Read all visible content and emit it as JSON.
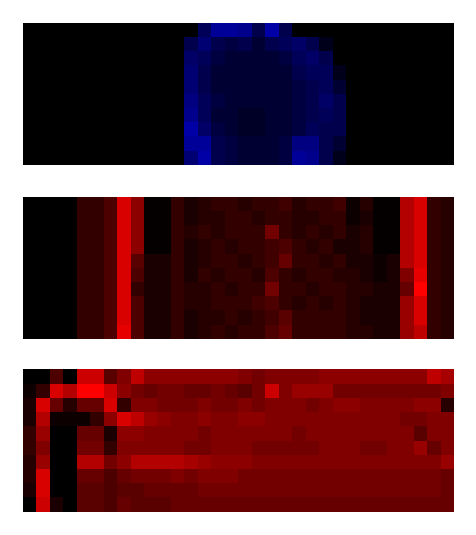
{
  "chart_data": [
    {
      "type": "heatmap",
      "color": "#0000ff",
      "zlim": [
        0,
        1
      ],
      "tick_labels": false,
      "cells": [
        [
          0,
          0,
          0,
          0,
          0,
          0,
          0,
          0,
          0,
          0,
          0,
          0,
          0,
          0.35,
          0.6,
          0.6,
          0.55,
          0.3,
          0.65,
          0.3,
          0,
          0,
          0,
          0,
          0,
          0,
          0,
          0,
          0,
          0,
          0,
          0
        ],
        [
          0,
          0,
          0,
          0,
          0,
          0,
          0,
          0,
          0,
          0,
          0,
          0,
          0.3,
          0.45,
          0.3,
          0.25,
          0.3,
          0.2,
          0.3,
          0.35,
          0.4,
          0.3,
          0.1,
          0,
          0,
          0,
          0,
          0,
          0,
          0,
          0,
          0
        ],
        [
          0,
          0,
          0,
          0,
          0,
          0,
          0,
          0,
          0,
          0,
          0,
          0,
          0.4,
          0.35,
          0.25,
          0.2,
          0.2,
          0.2,
          0.2,
          0.25,
          0.35,
          0.4,
          0.3,
          0,
          0,
          0,
          0,
          0,
          0,
          0,
          0,
          0
        ],
        [
          0,
          0,
          0,
          0,
          0,
          0,
          0,
          0,
          0,
          0,
          0,
          0,
          0.45,
          0.3,
          0.2,
          0.2,
          0.2,
          0.2,
          0.2,
          0.2,
          0.3,
          0.35,
          0.35,
          0.1,
          0,
          0,
          0,
          0,
          0,
          0,
          0,
          0
        ],
        [
          0,
          0,
          0,
          0,
          0,
          0,
          0,
          0,
          0,
          0,
          0,
          0,
          0.45,
          0.3,
          0.2,
          0.2,
          0.2,
          0.2,
          0.2,
          0.2,
          0.25,
          0.3,
          0.35,
          0.2,
          0,
          0,
          0,
          0,
          0,
          0,
          0,
          0
        ],
        [
          0,
          0,
          0,
          0,
          0,
          0,
          0,
          0,
          0,
          0,
          0,
          0,
          0.5,
          0.35,
          0.25,
          0.2,
          0.2,
          0.2,
          0.2,
          0.2,
          0.25,
          0.3,
          0.4,
          0.3,
          0,
          0,
          0,
          0,
          0,
          0,
          0,
          0
        ],
        [
          0,
          0,
          0,
          0,
          0,
          0,
          0,
          0,
          0,
          0,
          0,
          0,
          0.55,
          0.35,
          0.2,
          0.2,
          0.15,
          0.15,
          0.2,
          0.2,
          0.25,
          0.3,
          0.35,
          0.3,
          0,
          0,
          0,
          0,
          0,
          0,
          0,
          0
        ],
        [
          0,
          0,
          0,
          0,
          0,
          0,
          0,
          0,
          0,
          0,
          0,
          0,
          0.65,
          0.4,
          0.25,
          0.2,
          0.15,
          0.15,
          0.2,
          0.2,
          0.25,
          0.35,
          0.3,
          0.3,
          0,
          0,
          0,
          0,
          0,
          0,
          0,
          0
        ],
        [
          0,
          0,
          0,
          0,
          0,
          0,
          0,
          0,
          0,
          0,
          0,
          0,
          0.6,
          0.6,
          0.3,
          0.25,
          0.2,
          0.2,
          0.2,
          0.25,
          0.5,
          0.5,
          0.3,
          0.2,
          0,
          0,
          0,
          0,
          0,
          0,
          0,
          0
        ],
        [
          0,
          0,
          0,
          0,
          0,
          0,
          0,
          0,
          0,
          0,
          0,
          0,
          0.45,
          0.65,
          0.3,
          0.25,
          0.2,
          0.2,
          0.2,
          0.25,
          0.6,
          0.55,
          0.3,
          0.1,
          0,
          0,
          0,
          0,
          0,
          0,
          0,
          0
        ]
      ]
    },
    {
      "type": "heatmap",
      "color": "#ff0000",
      "zlim": [
        0,
        1
      ],
      "tick_labels": false,
      "cells": [
        [
          0,
          0,
          0,
          0,
          0.2,
          0.2,
          0.3,
          0.85,
          0.55,
          0.02,
          0.02,
          0.2,
          0.1,
          0.15,
          0.2,
          0.2,
          0.15,
          0.2,
          0.2,
          0.25,
          0.15,
          0.2,
          0.2,
          0.25,
          0.05,
          0.15,
          0.02,
          0.02,
          0.7,
          0.85,
          0.2,
          0.15
        ],
        [
          0,
          0,
          0,
          0,
          0.2,
          0.2,
          0.3,
          0.85,
          0.55,
          0.02,
          0.02,
          0.2,
          0.1,
          0.15,
          0.15,
          0.2,
          0.2,
          0.15,
          0.2,
          0.2,
          0.15,
          0.15,
          0.2,
          0.2,
          0.05,
          0.1,
          0.02,
          0.02,
          0.7,
          0.85,
          0.2,
          0.15
        ],
        [
          0,
          0,
          0,
          0,
          0.2,
          0.2,
          0.3,
          0.85,
          0.55,
          0.02,
          0.02,
          0.2,
          0.15,
          0.2,
          0.15,
          0.2,
          0.2,
          0.2,
          0.45,
          0.2,
          0.15,
          0.2,
          0.15,
          0.2,
          0.1,
          0.15,
          0.02,
          0.02,
          0.7,
          0.85,
          0.2,
          0.15
        ],
        [
          0,
          0,
          0,
          0,
          0.2,
          0.2,
          0.3,
          0.85,
          0.55,
          0.02,
          0.02,
          0.2,
          0.1,
          0.15,
          0.2,
          0.15,
          0.2,
          0.2,
          0.25,
          0.3,
          0.2,
          0.15,
          0.2,
          0.1,
          0.1,
          0.15,
          0.02,
          0.02,
          0.7,
          0.85,
          0.2,
          0.15
        ],
        [
          0,
          0,
          0,
          0,
          0.2,
          0.2,
          0.3,
          0.85,
          0.35,
          0.1,
          0.1,
          0.2,
          0.1,
          0.15,
          0.2,
          0.2,
          0.15,
          0.2,
          0.25,
          0.4,
          0.2,
          0.2,
          0.15,
          0.2,
          0.1,
          0.1,
          0.05,
          0.1,
          0.7,
          0.85,
          0.2,
          0.15
        ],
        [
          0,
          0,
          0,
          0,
          0.2,
          0.2,
          0.3,
          0.85,
          0.3,
          0.1,
          0.1,
          0.2,
          0.1,
          0.2,
          0.15,
          0.2,
          0.2,
          0.15,
          0.3,
          0.2,
          0.15,
          0.2,
          0.2,
          0.15,
          0.15,
          0.1,
          0.05,
          0.1,
          0.5,
          0.9,
          0.2,
          0.15
        ],
        [
          0,
          0,
          0,
          0,
          0.2,
          0.2,
          0.3,
          0.85,
          0.2,
          0.1,
          0.1,
          0.2,
          0.15,
          0.15,
          0.2,
          0.15,
          0.2,
          0.2,
          0.45,
          0.2,
          0.2,
          0.15,
          0.2,
          0.2,
          0.15,
          0.15,
          0.1,
          0.1,
          0.4,
          1,
          0.2,
          0.15
        ],
        [
          0,
          0,
          0,
          0,
          0.2,
          0.2,
          0.3,
          0.85,
          0.3,
          0.1,
          0.1,
          0.2,
          0.15,
          0.15,
          0.2,
          0.2,
          0.2,
          0.25,
          0.3,
          0.2,
          0.15,
          0.2,
          0.15,
          0.2,
          0.15,
          0.1,
          0.1,
          0.1,
          0.6,
          0.85,
          0.2,
          0.15
        ],
        [
          0,
          0,
          0,
          0,
          0.2,
          0.2,
          0.3,
          0.85,
          0.3,
          0.1,
          0.1,
          0.2,
          0.1,
          0.15,
          0.15,
          0.2,
          0.15,
          0.2,
          0.25,
          0.35,
          0.2,
          0.2,
          0.2,
          0.2,
          0.15,
          0.1,
          0.1,
          0.1,
          0.6,
          0.85,
          0.2,
          0.15
        ],
        [
          0,
          0,
          0,
          0,
          0.2,
          0.2,
          0.3,
          0.9,
          0.3,
          0.1,
          0.1,
          0.2,
          0.1,
          0.15,
          0.2,
          0.15,
          0.2,
          0.2,
          0.3,
          0.4,
          0.2,
          0.2,
          0.2,
          0.2,
          0.15,
          0.15,
          0.1,
          0.1,
          0.6,
          0.75,
          0.2,
          0.15
        ]
      ]
    },
    {
      "type": "heatmap",
      "color": "#ff0000",
      "zlim": [
        0,
        1
      ],
      "tick_labels": false,
      "cells": [
        [
          0,
          0,
          0.3,
          0,
          0.8,
          0.8,
          0.35,
          0.5,
          0.75,
          0.55,
          0.55,
          0.55,
          0.55,
          0.55,
          0.55,
          0.55,
          0.5,
          0.45,
          0.5,
          0.5,
          0.5,
          0.5,
          0.55,
          0.55,
          0.55,
          0.55,
          0.55,
          0.55,
          0.55,
          0.55,
          0.75,
          0.65
        ],
        [
          0.05,
          0.2,
          0.85,
          0.7,
          1,
          1,
          0.8,
          0.55,
          0.45,
          0.4,
          0.45,
          0.45,
          0.4,
          0.4,
          0.45,
          0.4,
          0.35,
          0.45,
          0.8,
          0.5,
          0.6,
          0.6,
          0.6,
          0.45,
          0.45,
          0.45,
          0.45,
          0.45,
          0.45,
          0.45,
          0.45,
          0.5
        ],
        [
          0.1,
          0.85,
          0.4,
          0.15,
          0.4,
          0.4,
          0.85,
          0.2,
          0.5,
          0.5,
          0.45,
          0.45,
          0.45,
          0.5,
          0.45,
          0.45,
          0.5,
          0.45,
          0.5,
          0.5,
          0.5,
          0.45,
          0.5,
          0.55,
          0.55,
          0.5,
          0.5,
          0.5,
          0.5,
          0.55,
          0.55,
          0.15
        ],
        [
          0.1,
          0.7,
          0.05,
          0.05,
          0.05,
          0.2,
          0.55,
          0.85,
          0.75,
          0.6,
          0.55,
          0.5,
          0.5,
          0.55,
          0.5,
          0.5,
          0.55,
          0.55,
          0.5,
          0.5,
          0.5,
          0.5,
          0.5,
          0.5,
          0.5,
          0.5,
          0.5,
          0.5,
          0.45,
          0.45,
          0.5,
          0.5
        ],
        [
          0.2,
          0.6,
          0,
          0,
          0.4,
          0.4,
          0.1,
          0.55,
          0.55,
          0.5,
          0.5,
          0.5,
          0.5,
          0.45,
          0.5,
          0.5,
          0.5,
          0.5,
          0.5,
          0.5,
          0.45,
          0.5,
          0.5,
          0.5,
          0.5,
          0.5,
          0.5,
          0.5,
          0.5,
          0.35,
          0.5,
          0.5
        ],
        [
          0.2,
          0.5,
          0,
          0,
          0.45,
          0.45,
          0.2,
          0.5,
          0.5,
          0.5,
          0.5,
          0.5,
          0.45,
          0.45,
          0.5,
          0.5,
          0.5,
          0.45,
          0.45,
          0.45,
          0.45,
          0.45,
          0.5,
          0.5,
          0.5,
          0.45,
          0.45,
          0.5,
          0.5,
          0.6,
          0.4,
          0.5
        ],
        [
          0.15,
          0.6,
          0,
          0,
          0.7,
          0.7,
          0.45,
          0.55,
          0.7,
          0.7,
          0.7,
          0.7,
          0.65,
          0.6,
          0.55,
          0.55,
          0.55,
          0.5,
          0.5,
          0.5,
          0.5,
          0.5,
          0.5,
          0.5,
          0.5,
          0.5,
          0.5,
          0.5,
          0.5,
          0.5,
          0.5,
          0.6
        ],
        [
          0.15,
          0.85,
          0,
          0,
          0.4,
          0.4,
          0.3,
          0.4,
          0.45,
          0.45,
          0.45,
          0.5,
          0.45,
          0.5,
          0.5,
          0.5,
          0.45,
          0.45,
          0.45,
          0.45,
          0.45,
          0.45,
          0.45,
          0.45,
          0.45,
          0.45,
          0.45,
          0.45,
          0.45,
          0.45,
          0.45,
          0.4
        ],
        [
          0.1,
          0.85,
          0,
          0,
          0.35,
          0.35,
          0.3,
          0.35,
          0.35,
          0.4,
          0.4,
          0.4,
          0.4,
          0.45,
          0.45,
          0.45,
          0.45,
          0.45,
          0.45,
          0.45,
          0.45,
          0.45,
          0.45,
          0.45,
          0.45,
          0.45,
          0.45,
          0.45,
          0.45,
          0.45,
          0.45,
          0.4
        ],
        [
          0,
          0.8,
          0.1,
          0,
          0.35,
          0.35,
          0.3,
          0.4,
          0.35,
          0.35,
          0.35,
          0.4,
          0.4,
          0.4,
          0.4,
          0.4,
          0.4,
          0.4,
          0.4,
          0.4,
          0.4,
          0.4,
          0.4,
          0.4,
          0.4,
          0.4,
          0.4,
          0.4,
          0.4,
          0.4,
          0.4,
          0.4
        ]
      ]
    }
  ]
}
